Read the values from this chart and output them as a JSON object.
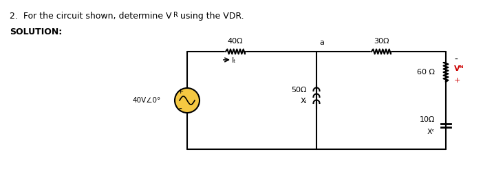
{
  "title_text": "2.  For the circuit shown, determine V",
  "title_R": "R",
  "title_suffix": " using the VDR.",
  "solution_text": "SOLUTION:",
  "bg_color": "#ffffff",
  "resistor_color": "#000000",
  "source_fill": "#f5c842",
  "vr_color": "#cc0000",
  "wire_color": "#000000",
  "label_40ohm": "40Ω",
  "label_30ohm": "30Ω",
  "label_60ohm": "60 Ω",
  "label_XL": "Xₗ",
  "label_50ohm": "50Ω",
  "label_Xc": "Xᶜ",
  "label_10ohm": "10Ω",
  "label_IT": "Iₜ",
  "label_source": "40V∠0°",
  "label_a": "a",
  "label_VR": "Vᴺ",
  "label_plus": "+",
  "label_minus": "-"
}
